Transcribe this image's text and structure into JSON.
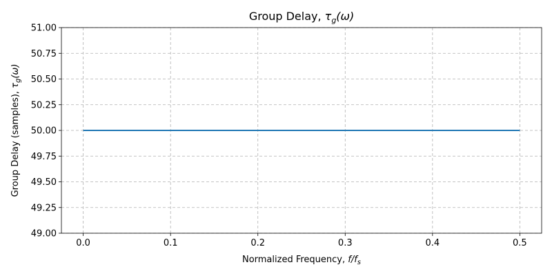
{
  "chart_data": {
    "type": "line",
    "title": "Group Delay, τg(ω)",
    "title_parts": {
      "prefix": "Group Delay, ",
      "symbol": "τ",
      "sub": "g",
      "suffix": "(ω)"
    },
    "xlabel": "Normalized Frequency, f/fs",
    "xlabel_parts": {
      "prefix": "Normalized Frequency, ",
      "symbol": "f/f",
      "sub": "s"
    },
    "ylabel": "Group Delay (samples), τg(ω)",
    "ylabel_parts": {
      "prefix": "Group Delay (samples), ",
      "symbol": "τ",
      "sub": "g",
      "suffix": "(ω)"
    },
    "xlim": [
      -0.025,
      0.525
    ],
    "ylim": [
      49.0,
      51.0
    ],
    "xticks": [
      0.0,
      0.1,
      0.2,
      0.3,
      0.4,
      0.5
    ],
    "xtick_labels": [
      "0.0",
      "0.1",
      "0.2",
      "0.3",
      "0.4",
      "0.5"
    ],
    "yticks": [
      49.0,
      49.25,
      49.5,
      49.75,
      50.0,
      50.25,
      50.5,
      50.75,
      51.0
    ],
    "ytick_labels": [
      "49.00",
      "49.25",
      "49.50",
      "49.75",
      "50.00",
      "50.25",
      "50.50",
      "50.75",
      "51.00"
    ],
    "grid": true,
    "series": [
      {
        "x": [
          0.0,
          0.5
        ],
        "y": [
          50.0,
          50.0
        ],
        "color": "#1f77b4"
      }
    ]
  }
}
